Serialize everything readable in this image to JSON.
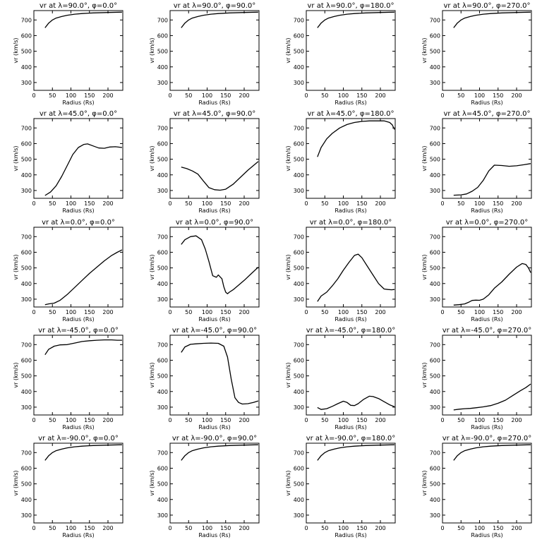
{
  "figure": {
    "background": "#ffffff",
    "line_color": "#000000"
  },
  "chart_data": [
    {
      "type": "line",
      "title": "vr at λ=90.0°, φ=0.0°",
      "xlabel": "Radius (Rs)",
      "ylabel": "vr (km/s)",
      "xlim": [
        0,
        240
      ],
      "ylim": [
        250,
        760
      ],
      "xticks": [
        0,
        50,
        100,
        150,
        200
      ],
      "yticks": [
        300,
        400,
        500,
        600,
        700
      ],
      "x": [
        30,
        40,
        50,
        60,
        75,
        90,
        110,
        130,
        160,
        200,
        238
      ],
      "y": [
        650,
        680,
        700,
        712,
        722,
        730,
        737,
        741,
        745,
        748,
        750
      ]
    },
    {
      "type": "line",
      "title": "vr at λ=90.0°, φ=90.0°",
      "xlabel": "Radius (Rs)",
      "ylabel": "vr (km/s)",
      "xlim": [
        0,
        240
      ],
      "ylim": [
        250,
        760
      ],
      "xticks": [
        0,
        50,
        100,
        150,
        200
      ],
      "yticks": [
        300,
        400,
        500,
        600,
        700
      ],
      "x": [
        30,
        40,
        50,
        60,
        75,
        90,
        110,
        130,
        160,
        200,
        238
      ],
      "y": [
        650,
        680,
        700,
        712,
        722,
        730,
        737,
        741,
        745,
        748,
        750
      ]
    },
    {
      "type": "line",
      "title": "vr at λ=90.0°, φ=180.0°",
      "xlabel": "Radius (Rs)",
      "ylabel": "vr (km/s)",
      "xlim": [
        0,
        240
      ],
      "ylim": [
        250,
        760
      ],
      "xticks": [
        0,
        50,
        100,
        150,
        200
      ],
      "yticks": [
        300,
        400,
        500,
        600,
        700
      ],
      "x": [
        30,
        40,
        50,
        60,
        75,
        90,
        110,
        130,
        160,
        200,
        238
      ],
      "y": [
        650,
        680,
        700,
        712,
        722,
        730,
        737,
        741,
        745,
        748,
        750
      ]
    },
    {
      "type": "line",
      "title": "vr at λ=90.0°, φ=270.0°",
      "xlabel": "Radius (Rs)",
      "ylabel": "vr (km/s)",
      "xlim": [
        0,
        240
      ],
      "ylim": [
        250,
        760
      ],
      "xticks": [
        0,
        50,
        100,
        150,
        200
      ],
      "yticks": [
        300,
        400,
        500,
        600,
        700
      ],
      "x": [
        30,
        40,
        50,
        60,
        75,
        90,
        110,
        130,
        160,
        200,
        238
      ],
      "y": [
        650,
        680,
        700,
        712,
        722,
        730,
        737,
        741,
        745,
        748,
        750
      ]
    },
    {
      "type": "line",
      "title": "vr at λ=45.0°, φ=0.0°",
      "xlabel": "Radius (Rs)",
      "ylabel": "vr (km/s)",
      "xlim": [
        0,
        240
      ],
      "ylim": [
        250,
        760
      ],
      "xticks": [
        0,
        50,
        100,
        150,
        200
      ],
      "yticks": [
        300,
        400,
        500,
        600,
        700
      ],
      "x": [
        30,
        45,
        60,
        75,
        90,
        105,
        120,
        135,
        145,
        160,
        175,
        190,
        205,
        220,
        238
      ],
      "y": [
        268,
        290,
        330,
        390,
        460,
        530,
        575,
        595,
        598,
        585,
        572,
        570,
        578,
        580,
        575
      ]
    },
    {
      "type": "line",
      "title": "vr at λ=45.0°, φ=90.0°",
      "xlabel": "Radius (Rs)",
      "ylabel": "vr (km/s)",
      "xlim": [
        0,
        240
      ],
      "ylim": [
        250,
        760
      ],
      "xticks": [
        0,
        50,
        100,
        150,
        200
      ],
      "yticks": [
        300,
        400,
        500,
        600,
        700
      ],
      "x": [
        30,
        45,
        60,
        75,
        90,
        105,
        120,
        135,
        150,
        170,
        190,
        210,
        238
      ],
      "y": [
        450,
        440,
        425,
        405,
        360,
        318,
        305,
        302,
        308,
        340,
        385,
        430,
        485
      ]
    },
    {
      "type": "line",
      "title": "vr at λ=45.0°, φ=180.0°",
      "xlabel": "Radius (Rs)",
      "ylabel": "vr (km/s)",
      "xlim": [
        0,
        240
      ],
      "ylim": [
        250,
        760
      ],
      "xticks": [
        0,
        50,
        100,
        150,
        200
      ],
      "yticks": [
        300,
        400,
        500,
        600,
        700
      ],
      "x": [
        30,
        40,
        55,
        70,
        90,
        110,
        130,
        150,
        170,
        190,
        210,
        225,
        232,
        238
      ],
      "y": [
        515,
        575,
        630,
        665,
        700,
        722,
        735,
        742,
        745,
        745,
        745,
        735,
        720,
        690
      ]
    },
    {
      "type": "line",
      "title": "vr at λ=45.0°, φ=270.0°",
      "xlabel": "Radius (Rs)",
      "ylabel": "vr (km/s)",
      "xlim": [
        0,
        240
      ],
      "ylim": [
        250,
        760
      ],
      "xticks": [
        0,
        50,
        100,
        150,
        200
      ],
      "yticks": [
        300,
        400,
        500,
        600,
        700
      ],
      "x": [
        30,
        50,
        65,
        80,
        95,
        110,
        125,
        140,
        160,
        180,
        200,
        220,
        238
      ],
      "y": [
        270,
        272,
        278,
        295,
        320,
        365,
        425,
        462,
        460,
        455,
        458,
        465,
        472
      ]
    },
    {
      "type": "line",
      "title": "vr at λ=0.0°, φ=0.0°",
      "xlabel": "Radius (Rs)",
      "ylabel": "vr (km/s)",
      "xlim": [
        0,
        240
      ],
      "ylim": [
        250,
        760
      ],
      "xticks": [
        0,
        50,
        100,
        150,
        200
      ],
      "yticks": [
        300,
        400,
        500,
        600,
        700
      ],
      "x": [
        30,
        40,
        55,
        70,
        90,
        110,
        130,
        150,
        170,
        190,
        210,
        225,
        238
      ],
      "y": [
        265,
        270,
        275,
        292,
        330,
        375,
        420,
        465,
        505,
        545,
        580,
        600,
        615
      ]
    },
    {
      "type": "line",
      "title": "vr at λ=0.0°, φ=90.0°",
      "xlabel": "Radius (Rs)",
      "ylabel": "vr (km/s)",
      "xlim": [
        0,
        240
      ],
      "ylim": [
        250,
        760
      ],
      "xticks": [
        0,
        50,
        100,
        150,
        200
      ],
      "yticks": [
        300,
        400,
        500,
        600,
        700
      ],
      "x": [
        30,
        40,
        55,
        70,
        85,
        95,
        105,
        115,
        125,
        130,
        140,
        145,
        150,
        155,
        160,
        170,
        185,
        200,
        220,
        238
      ],
      "y": [
        650,
        680,
        700,
        705,
        680,
        620,
        540,
        450,
        440,
        455,
        430,
        380,
        345,
        335,
        345,
        360,
        390,
        420,
        465,
        505
      ]
    },
    {
      "type": "line",
      "title": "vr at λ=0.0°, φ=180.0°",
      "xlabel": "Radius (Rs)",
      "ylabel": "vr (km/s)",
      "xlim": [
        0,
        240
      ],
      "ylim": [
        250,
        760
      ],
      "xticks": [
        0,
        50,
        100,
        150,
        200
      ],
      "yticks": [
        300,
        400,
        500,
        600,
        700
      ],
      "x": [
        30,
        40,
        55,
        70,
        85,
        100,
        115,
        130,
        140,
        150,
        165,
        180,
        195,
        210,
        220,
        230,
        238
      ],
      "y": [
        285,
        320,
        345,
        385,
        430,
        485,
        535,
        580,
        588,
        565,
        510,
        455,
        400,
        365,
        362,
        360,
        362
      ]
    },
    {
      "type": "line",
      "title": "vr at λ=0.0°, φ=270.0°",
      "xlabel": "Radius (Rs)",
      "ylabel": "vr (km/s)",
      "xlim": [
        0,
        240
      ],
      "ylim": [
        250,
        760
      ],
      "xticks": [
        0,
        50,
        100,
        150,
        200
      ],
      "yticks": [
        300,
        400,
        500,
        600,
        700
      ],
      "x": [
        30,
        45,
        60,
        70,
        80,
        90,
        100,
        110,
        125,
        140,
        160,
        180,
        200,
        215,
        225,
        232,
        238
      ],
      "y": [
        262,
        265,
        270,
        280,
        292,
        294,
        293,
        300,
        328,
        370,
        410,
        460,
        505,
        528,
        522,
        500,
        470
      ]
    },
    {
      "type": "line",
      "title": "vr at λ=-45.0°, φ=0.0°",
      "xlabel": "Radius (Rs)",
      "ylabel": "vr (km/s)",
      "xlim": [
        0,
        240
      ],
      "ylim": [
        250,
        760
      ],
      "xticks": [
        0,
        50,
        100,
        150,
        200
      ],
      "yticks": [
        300,
        400,
        500,
        600,
        700
      ],
      "x": [
        30,
        40,
        55,
        70,
        90,
        110,
        130,
        150,
        170,
        190,
        210,
        225,
        238
      ],
      "y": [
        635,
        670,
        690,
        698,
        700,
        710,
        720,
        725,
        728,
        730,
        730,
        728,
        728
      ]
    },
    {
      "type": "line",
      "title": "vr at λ=-45.0°, φ=90.0°",
      "xlabel": "Radius (Rs)",
      "ylabel": "vr (km/s)",
      "xlim": [
        0,
        240
      ],
      "ylim": [
        250,
        760
      ],
      "xticks": [
        0,
        50,
        100,
        150,
        200
      ],
      "yticks": [
        300,
        400,
        500,
        600,
        700
      ],
      "x": [
        30,
        40,
        55,
        70,
        90,
        110,
        130,
        145,
        155,
        165,
        175,
        185,
        195,
        210,
        225,
        238
      ],
      "y": [
        650,
        685,
        702,
        705,
        708,
        710,
        708,
        690,
        620,
        480,
        360,
        330,
        320,
        322,
        330,
        340
      ]
    },
    {
      "type": "line",
      "title": "vr at λ=-45.0°, φ=180.0°",
      "xlabel": "Radius (Rs)",
      "ylabel": "vr (km/s)",
      "xlim": [
        0,
        240
      ],
      "ylim": [
        250,
        760
      ],
      "xticks": [
        0,
        50,
        100,
        150,
        200
      ],
      "yticks": [
        300,
        400,
        500,
        600,
        700
      ],
      "x": [
        30,
        40,
        55,
        70,
        85,
        100,
        110,
        120,
        130,
        140,
        155,
        170,
        180,
        195,
        210,
        225,
        238
      ],
      "y": [
        298,
        285,
        290,
        305,
        322,
        338,
        330,
        312,
        310,
        322,
        350,
        370,
        368,
        355,
        335,
        315,
        303
      ]
    },
    {
      "type": "line",
      "title": "vr at λ=-45.0°, φ=270.0°",
      "xlabel": "Radius (Rs)",
      "ylabel": "vr (km/s)",
      "xlim": [
        0,
        240
      ],
      "ylim": [
        250,
        760
      ],
      "xticks": [
        0,
        50,
        100,
        150,
        200
      ],
      "yticks": [
        300,
        400,
        500,
        600,
        700
      ],
      "x": [
        30,
        45,
        60,
        75,
        90,
        110,
        130,
        150,
        170,
        190,
        210,
        225,
        238
      ],
      "y": [
        282,
        287,
        290,
        292,
        296,
        302,
        310,
        325,
        345,
        375,
        405,
        425,
        448
      ]
    },
    {
      "type": "line",
      "title": "vr at λ=-90.0°, φ=0.0°",
      "xlabel": "Radius (Rs)",
      "ylabel": "vr (km/s)",
      "xlim": [
        0,
        240
      ],
      "ylim": [
        250,
        760
      ],
      "xticks": [
        0,
        50,
        100,
        150,
        200
      ],
      "yticks": [
        300,
        400,
        500,
        600,
        700
      ],
      "x": [
        30,
        40,
        50,
        60,
        75,
        90,
        110,
        130,
        160,
        200,
        238
      ],
      "y": [
        650,
        680,
        700,
        712,
        722,
        730,
        737,
        741,
        745,
        748,
        750
      ]
    },
    {
      "type": "line",
      "title": "vr at λ=-90.0°, φ=90.0°",
      "xlabel": "Radius (Rs)",
      "ylabel": "vr (km/s)",
      "xlim": [
        0,
        240
      ],
      "ylim": [
        250,
        760
      ],
      "xticks": [
        0,
        50,
        100,
        150,
        200
      ],
      "yticks": [
        300,
        400,
        500,
        600,
        700
      ],
      "x": [
        30,
        40,
        50,
        60,
        75,
        90,
        110,
        130,
        160,
        200,
        238
      ],
      "y": [
        650,
        680,
        700,
        712,
        722,
        730,
        737,
        741,
        745,
        748,
        750
      ]
    },
    {
      "type": "line",
      "title": "vr at λ=-90.0°, φ=180.0°",
      "xlabel": "Radius (Rs)",
      "ylabel": "vr (km/s)",
      "xlim": [
        0,
        240
      ],
      "ylim": [
        250,
        760
      ],
      "xticks": [
        0,
        50,
        100,
        150,
        200
      ],
      "yticks": [
        300,
        400,
        500,
        600,
        700
      ],
      "x": [
        30,
        40,
        50,
        60,
        75,
        90,
        110,
        130,
        160,
        200,
        238
      ],
      "y": [
        650,
        680,
        700,
        712,
        722,
        730,
        737,
        741,
        745,
        748,
        750
      ]
    },
    {
      "type": "line",
      "title": "vr at λ=-90.0°, φ=270.0°",
      "xlabel": "Radius (Rs)",
      "ylabel": "vr (km/s)",
      "xlim": [
        0,
        240
      ],
      "ylim": [
        250,
        760
      ],
      "xticks": [
        0,
        50,
        100,
        150,
        200
      ],
      "yticks": [
        300,
        400,
        500,
        600,
        700
      ],
      "x": [
        30,
        40,
        50,
        60,
        75,
        90,
        110,
        130,
        160,
        200,
        238
      ],
      "y": [
        650,
        680,
        700,
        712,
        722,
        730,
        737,
        741,
        745,
        748,
        750
      ]
    }
  ]
}
